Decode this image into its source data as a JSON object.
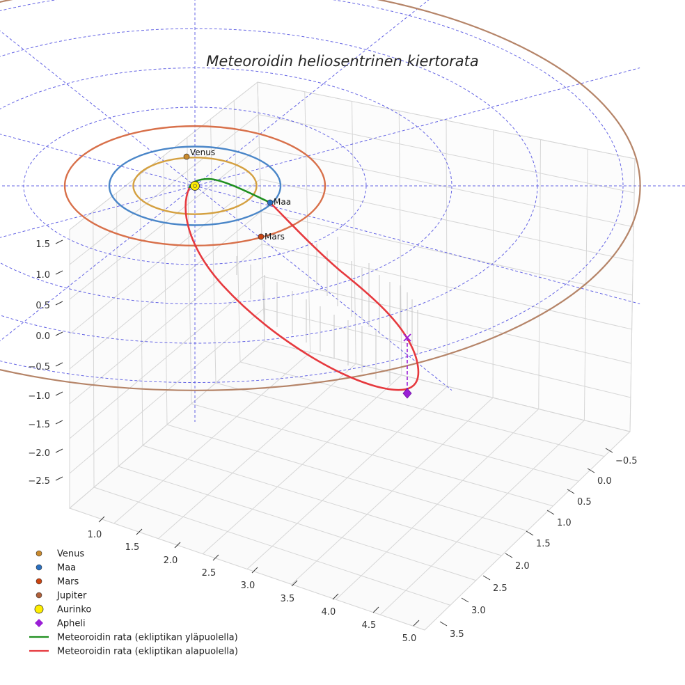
{
  "chart_data": {
    "type": "3d-line",
    "title": "Meteoroidin heliosentrinen kiertorata",
    "x_axis": {
      "label": "",
      "ticks": [
        -0.5,
        0.0,
        0.5,
        1.0,
        1.5,
        2.0,
        2.5,
        3.0,
        3.5
      ],
      "range": [
        -0.5,
        3.5
      ]
    },
    "y_axis": {
      "label": "",
      "ticks": [
        1.0,
        1.5,
        2.0,
        2.5,
        3.0,
        3.5,
        4.0,
        4.5,
        5.0
      ],
      "range": [
        1.0,
        5.0
      ]
    },
    "z_axis": {
      "label": "",
      "ticks": [
        1.5,
        1.0,
        0.5,
        0.0,
        -0.5,
        -1.0,
        -1.5,
        -2.0,
        -2.5
      ],
      "range": [
        -2.5,
        1.5
      ]
    },
    "tick_text": {
      "x": [
        "−0.5",
        "0.0",
        "0.5",
        "1.0",
        "1.5",
        "2.0",
        "2.5",
        "3.0",
        "3.5"
      ],
      "y": [
        "1.0",
        "1.5",
        "2.0",
        "2.5",
        "3.0",
        "3.5",
        "4.0",
        "4.5",
        "5.0"
      ],
      "z": [
        "1.5",
        "1.0",
        "0.5",
        "0.0",
        "−0.5",
        "−1.0",
        "−1.5",
        "−2.0",
        "−2.5"
      ]
    },
    "planet_orbits": [
      {
        "name": "Venus",
        "radius_au": 0.72,
        "color": "#d4a040"
      },
      {
        "name": "Maa",
        "radius_au": 1.0,
        "color": "#4a86c8"
      },
      {
        "name": "Mars",
        "radius_au": 1.52,
        "color": "#d8704a"
      },
      {
        "name": "Jupiter",
        "radius_au": 5.2,
        "color": "#b58468"
      }
    ],
    "planets": [
      {
        "name": "Venus",
        "color": "#c98a2e",
        "labelled": true
      },
      {
        "name": "Maa",
        "color": "#2a70c0",
        "labelled": true
      },
      {
        "name": "Mars",
        "color": "#cc4410",
        "labelled": true
      }
    ],
    "sun": {
      "name": "Aurinko",
      "color": "#ffee00"
    },
    "aphelion": {
      "name": "Apheli",
      "color": "#9a1fd6"
    },
    "meteoroid": {
      "above_ecliptic": {
        "name": "Meteoroidin rata (ekliptikan yläpuolella)",
        "color": "#1f8f1f"
      },
      "below_ecliptic": {
        "name": "Meteoroidin rata (ekliptikan alapuolella)",
        "color": "#e6393e"
      }
    },
    "legend": [
      {
        "label": "Venus",
        "marker": "circle",
        "color": "#c98a2e"
      },
      {
        "label": "Maa",
        "marker": "circle",
        "color": "#2a70c0"
      },
      {
        "label": "Mars",
        "marker": "circle",
        "color": "#cc4410"
      },
      {
        "label": "Jupiter",
        "marker": "circle",
        "color": "#b0603a"
      },
      {
        "label": "Aurinko",
        "marker": "big-circle",
        "color": "#ffee00"
      },
      {
        "label": "Apheli",
        "marker": "diamond",
        "color": "#9a1fd6"
      },
      {
        "label": "Meteoroidin rata (ekliptikan yläpuolella)",
        "marker": "line",
        "color": "#1f8f1f"
      },
      {
        "label": "Meteoroidin rata (ekliptikan alapuolella)",
        "marker": "line",
        "color": "#e6393e"
      }
    ],
    "legend_position": "bottom-left",
    "grid": true
  }
}
